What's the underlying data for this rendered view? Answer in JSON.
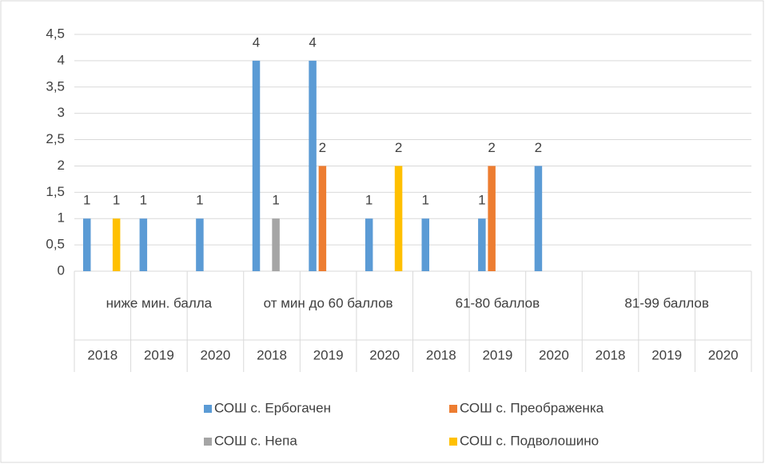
{
  "chart_data": {
    "type": "bar",
    "groups": [
      "ниже мин. балла",
      "от мин до 60 баллов",
      "61-80 баллов",
      "81-99 баллов"
    ],
    "categories": [
      "2018",
      "2019",
      "2020",
      "2018",
      "2019",
      "2020",
      "2018",
      "2019",
      "2020",
      "2018",
      "2019",
      "2020"
    ],
    "series": [
      {
        "name": "СОШ с. Ербогачен",
        "color": "#5b9bd5",
        "values": [
          1,
          1,
          1,
          4,
          4,
          1,
          1,
          1,
          2,
          null,
          null,
          null
        ]
      },
      {
        "name": "СОШ с. Преображенка",
        "color": "#ed7d31",
        "values": [
          null,
          null,
          null,
          null,
          2,
          null,
          null,
          2,
          null,
          null,
          null,
          null
        ]
      },
      {
        "name": "СОШ с. Непа",
        "color": "#a5a5a5",
        "values": [
          null,
          null,
          null,
          1,
          null,
          null,
          null,
          null,
          null,
          null,
          null,
          null
        ]
      },
      {
        "name": "СОШ с. Подволошино",
        "color": "#ffc000",
        "values": [
          1,
          null,
          null,
          null,
          null,
          2,
          null,
          null,
          null,
          null,
          null,
          null
        ]
      }
    ],
    "ylim": [
      0,
      4.5
    ],
    "yticks": [
      0,
      {
        "value": 0.5,
        "label": "0,5"
      },
      1,
      {
        "value": 1.5,
        "label": "1,5"
      },
      2,
      {
        "value": 2.5,
        "label": "2,5"
      },
      3,
      {
        "value": 3.5,
        "label": "3,5"
      },
      4,
      {
        "value": 4.5,
        "label": "4,5"
      }
    ],
    "grid": true
  }
}
